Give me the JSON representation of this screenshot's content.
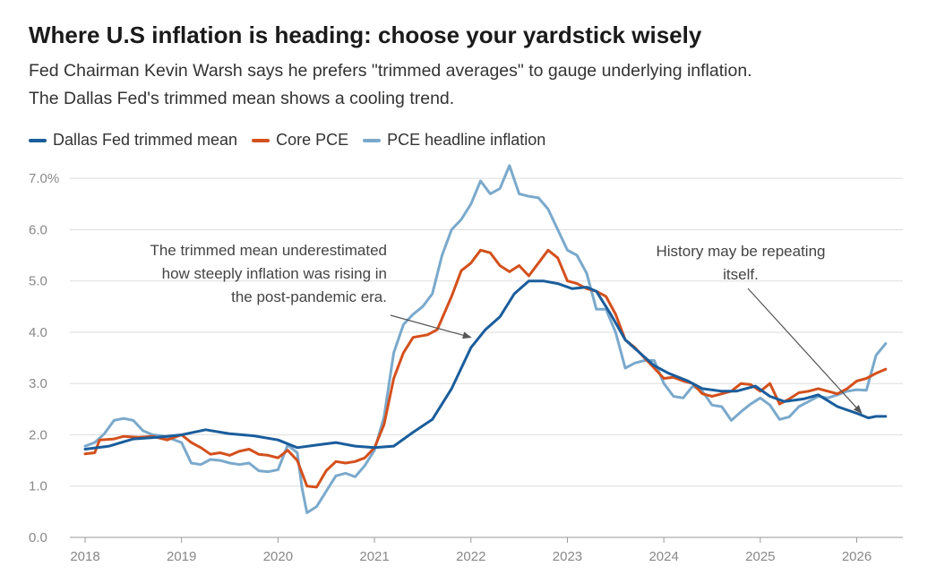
{
  "header": {
    "title": "Where U.S inflation is heading: choose your yardstick wisely",
    "subtitle_lines": [
      "Fed Chairman Kevin Warsh says he prefers \"trimmed averages\" to gauge underlying inflation.",
      "The Dallas Fed's trimmed mean shows a cooling trend."
    ]
  },
  "chart_data": {
    "type": "line",
    "title": "Where U.S inflation is heading: choose your yardstick wisely",
    "ylim": [
      0,
      7.3
    ],
    "xlim": [
      2018,
      2026.45
    ],
    "y_ticks": [
      0,
      1,
      2,
      3,
      4,
      5,
      6,
      7
    ],
    "y_tick_labels": [
      "0.0",
      "1.0",
      "2.0",
      "3.0",
      "4.0",
      "5.0",
      "6.0",
      "7.0%"
    ],
    "x_ticks": [
      2018,
      2019,
      2020,
      2021,
      2022,
      2023,
      2024,
      2025,
      2026
    ],
    "x_tick_labels": [
      "2018",
      "2019",
      "2020",
      "2021",
      "2022",
      "2023",
      "2024",
      "2025",
      "2026"
    ],
    "grid": "horizontal",
    "legend_position": "top-left",
    "series": [
      {
        "name": "Dallas Fed trimmed mean",
        "color": "#1a5d9c",
        "points": [
          [
            2018.0,
            1.72
          ],
          [
            2018.25,
            1.78
          ],
          [
            2018.5,
            1.92
          ],
          [
            2018.75,
            1.95
          ],
          [
            2019.0,
            2.0
          ],
          [
            2019.25,
            2.1
          ],
          [
            2019.5,
            2.02
          ],
          [
            2019.75,
            1.98
          ],
          [
            2020.0,
            1.9
          ],
          [
            2020.2,
            1.75
          ],
          [
            2020.4,
            1.8
          ],
          [
            2020.6,
            1.85
          ],
          [
            2020.8,
            1.78
          ],
          [
            2021.0,
            1.75
          ],
          [
            2021.2,
            1.78
          ],
          [
            2021.4,
            2.05
          ],
          [
            2021.6,
            2.3
          ],
          [
            2021.8,
            2.9
          ],
          [
            2022.0,
            3.7
          ],
          [
            2022.15,
            4.05
          ],
          [
            2022.3,
            4.3
          ],
          [
            2022.45,
            4.75
          ],
          [
            2022.6,
            5.0
          ],
          [
            2022.75,
            5.0
          ],
          [
            2022.9,
            4.95
          ],
          [
            2023.05,
            4.85
          ],
          [
            2023.2,
            4.88
          ],
          [
            2023.3,
            4.8
          ],
          [
            2023.45,
            4.35
          ],
          [
            2023.6,
            3.85
          ],
          [
            2023.75,
            3.6
          ],
          [
            2023.9,
            3.35
          ],
          [
            2024.05,
            3.2
          ],
          [
            2024.25,
            3.05
          ],
          [
            2024.4,
            2.9
          ],
          [
            2024.6,
            2.85
          ],
          [
            2024.75,
            2.85
          ],
          [
            2024.95,
            2.95
          ],
          [
            2025.1,
            2.75
          ],
          [
            2025.25,
            2.65
          ],
          [
            2025.45,
            2.7
          ],
          [
            2025.6,
            2.78
          ],
          [
            2025.8,
            2.55
          ],
          [
            2026.0,
            2.42
          ],
          [
            2026.12,
            2.33
          ],
          [
            2026.2,
            2.36
          ],
          [
            2026.3,
            2.36
          ]
        ]
      },
      {
        "name": "Core PCE",
        "color": "#d4501c",
        "points": [
          [
            2018.0,
            1.63
          ],
          [
            2018.1,
            1.65
          ],
          [
            2018.15,
            1.9
          ],
          [
            2018.3,
            1.92
          ],
          [
            2018.4,
            1.97
          ],
          [
            2018.55,
            1.95
          ],
          [
            2018.7,
            1.97
          ],
          [
            2018.85,
            1.9
          ],
          [
            2019.0,
            2.0
          ],
          [
            2019.1,
            1.85
          ],
          [
            2019.2,
            1.75
          ],
          [
            2019.3,
            1.62
          ],
          [
            2019.4,
            1.65
          ],
          [
            2019.5,
            1.6
          ],
          [
            2019.6,
            1.68
          ],
          [
            2019.7,
            1.72
          ],
          [
            2019.8,
            1.62
          ],
          [
            2019.9,
            1.6
          ],
          [
            2020.0,
            1.55
          ],
          [
            2020.1,
            1.7
          ],
          [
            2020.2,
            1.5
          ],
          [
            2020.3,
            1.0
          ],
          [
            2020.4,
            0.98
          ],
          [
            2020.5,
            1.3
          ],
          [
            2020.6,
            1.48
          ],
          [
            2020.7,
            1.45
          ],
          [
            2020.8,
            1.48
          ],
          [
            2020.9,
            1.55
          ],
          [
            2021.0,
            1.75
          ],
          [
            2021.1,
            2.2
          ],
          [
            2021.2,
            3.1
          ],
          [
            2021.3,
            3.6
          ],
          [
            2021.4,
            3.9
          ],
          [
            2021.55,
            3.95
          ],
          [
            2021.65,
            4.05
          ],
          [
            2021.8,
            4.7
          ],
          [
            2021.9,
            5.2
          ],
          [
            2022.0,
            5.35
          ],
          [
            2022.1,
            5.6
          ],
          [
            2022.2,
            5.55
          ],
          [
            2022.3,
            5.3
          ],
          [
            2022.4,
            5.18
          ],
          [
            2022.5,
            5.3
          ],
          [
            2022.6,
            5.1
          ],
          [
            2022.7,
            5.35
          ],
          [
            2022.8,
            5.6
          ],
          [
            2022.9,
            5.45
          ],
          [
            2023.0,
            5.0
          ],
          [
            2023.1,
            4.95
          ],
          [
            2023.2,
            4.85
          ],
          [
            2023.3,
            4.8
          ],
          [
            2023.4,
            4.7
          ],
          [
            2023.5,
            4.35
          ],
          [
            2023.6,
            3.85
          ],
          [
            2023.7,
            3.7
          ],
          [
            2023.8,
            3.5
          ],
          [
            2023.9,
            3.3
          ],
          [
            2024.0,
            3.1
          ],
          [
            2024.1,
            3.12
          ],
          [
            2024.2,
            3.05
          ],
          [
            2024.3,
            3.0
          ],
          [
            2024.4,
            2.8
          ],
          [
            2024.5,
            2.75
          ],
          [
            2024.6,
            2.8
          ],
          [
            2024.7,
            2.85
          ],
          [
            2024.8,
            3.0
          ],
          [
            2024.9,
            2.98
          ],
          [
            2025.0,
            2.85
          ],
          [
            2025.1,
            3.0
          ],
          [
            2025.2,
            2.6
          ],
          [
            2025.3,
            2.7
          ],
          [
            2025.4,
            2.82
          ],
          [
            2025.5,
            2.85
          ],
          [
            2025.6,
            2.9
          ],
          [
            2025.7,
            2.85
          ],
          [
            2025.8,
            2.8
          ],
          [
            2025.9,
            2.9
          ],
          [
            2026.0,
            3.05
          ],
          [
            2026.1,
            3.1
          ],
          [
            2026.2,
            3.2
          ],
          [
            2026.3,
            3.28
          ]
        ]
      },
      {
        "name": "PCE headline inflation",
        "color": "#7aa9cc",
        "points": [
          [
            2018.0,
            1.78
          ],
          [
            2018.1,
            1.85
          ],
          [
            2018.2,
            2.02
          ],
          [
            2018.3,
            2.28
          ],
          [
            2018.4,
            2.32
          ],
          [
            2018.5,
            2.28
          ],
          [
            2018.6,
            2.08
          ],
          [
            2018.7,
            2.0
          ],
          [
            2018.8,
            1.98
          ],
          [
            2018.9,
            1.92
          ],
          [
            2019.0,
            1.85
          ],
          [
            2019.1,
            1.45
          ],
          [
            2019.2,
            1.42
          ],
          [
            2019.3,
            1.52
          ],
          [
            2019.4,
            1.5
          ],
          [
            2019.5,
            1.45
          ],
          [
            2019.6,
            1.42
          ],
          [
            2019.7,
            1.45
          ],
          [
            2019.8,
            1.3
          ],
          [
            2019.9,
            1.28
          ],
          [
            2020.0,
            1.32
          ],
          [
            2020.1,
            1.8
          ],
          [
            2020.2,
            1.65
          ],
          [
            2020.25,
            0.95
          ],
          [
            2020.3,
            0.48
          ],
          [
            2020.4,
            0.6
          ],
          [
            2020.5,
            0.9
          ],
          [
            2020.6,
            1.2
          ],
          [
            2020.7,
            1.25
          ],
          [
            2020.8,
            1.18
          ],
          [
            2020.9,
            1.4
          ],
          [
            2021.0,
            1.7
          ],
          [
            2021.1,
            2.35
          ],
          [
            2021.2,
            3.6
          ],
          [
            2021.3,
            4.15
          ],
          [
            2021.4,
            4.35
          ],
          [
            2021.5,
            4.5
          ],
          [
            2021.6,
            4.75
          ],
          [
            2021.7,
            5.5
          ],
          [
            2021.8,
            6.0
          ],
          [
            2021.9,
            6.2
          ],
          [
            2022.0,
            6.5
          ],
          [
            2022.1,
            6.95
          ],
          [
            2022.2,
            6.7
          ],
          [
            2022.3,
            6.8
          ],
          [
            2022.4,
            7.25
          ],
          [
            2022.5,
            6.7
          ],
          [
            2022.6,
            6.65
          ],
          [
            2022.7,
            6.62
          ],
          [
            2022.8,
            6.4
          ],
          [
            2022.9,
            6.0
          ],
          [
            2023.0,
            5.6
          ],
          [
            2023.1,
            5.5
          ],
          [
            2023.2,
            5.15
          ],
          [
            2023.3,
            4.45
          ],
          [
            2023.4,
            4.45
          ],
          [
            2023.5,
            4.0
          ],
          [
            2023.6,
            3.3
          ],
          [
            2023.7,
            3.4
          ],
          [
            2023.8,
            3.45
          ],
          [
            2023.9,
            3.45
          ],
          [
            2024.0,
            3.0
          ],
          [
            2024.1,
            2.75
          ],
          [
            2024.2,
            2.72
          ],
          [
            2024.3,
            2.95
          ],
          [
            2024.4,
            2.85
          ],
          [
            2024.5,
            2.58
          ],
          [
            2024.6,
            2.55
          ],
          [
            2024.7,
            2.28
          ],
          [
            2024.8,
            2.45
          ],
          [
            2024.9,
            2.6
          ],
          [
            2025.0,
            2.72
          ],
          [
            2025.1,
            2.58
          ],
          [
            2025.2,
            2.3
          ],
          [
            2025.3,
            2.35
          ],
          [
            2025.4,
            2.55
          ],
          [
            2025.5,
            2.65
          ],
          [
            2025.6,
            2.75
          ],
          [
            2025.7,
            2.72
          ],
          [
            2025.8,
            2.78
          ],
          [
            2025.9,
            2.85
          ],
          [
            2026.0,
            2.88
          ],
          [
            2026.1,
            2.87
          ],
          [
            2026.2,
            3.55
          ],
          [
            2026.3,
            3.78
          ]
        ]
      }
    ],
    "annotations": [
      {
        "lines": [
          "The trimmed mean underestimated",
          "how steeply inflation was rising in",
          "the post-pandemic era."
        ],
        "arrow_to": [
          2022.0,
          3.9
        ]
      },
      {
        "lines": [
          "History may be repeating",
          "itself."
        ],
        "arrow_to": [
          2026.05,
          2.42
        ]
      }
    ]
  }
}
